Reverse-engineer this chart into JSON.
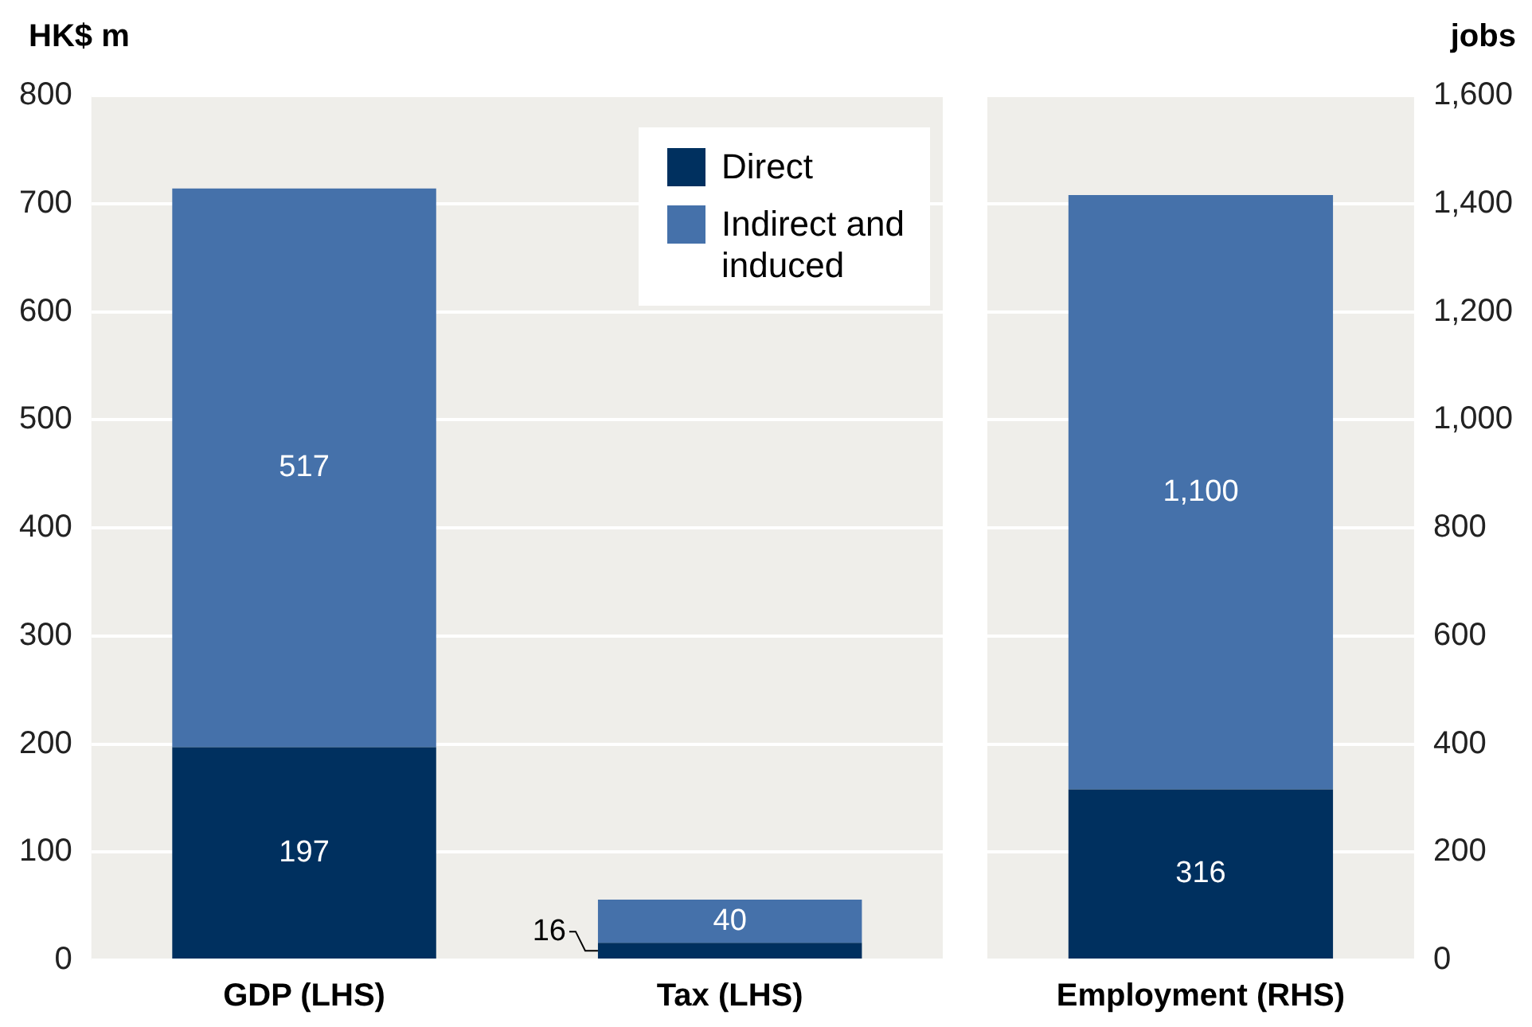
{
  "chart_data": [
    {
      "type": "bar",
      "ylabel": "HK$ m",
      "categories": [
        "GDP (LHS)",
        "Tax (LHS)"
      ],
      "stacked": true,
      "ylim": [
        0,
        800
      ],
      "yticks": [
        0,
        100,
        200,
        300,
        400,
        500,
        600,
        700,
        800
      ],
      "grid": "y",
      "legend": "top right",
      "series": [
        {
          "name": "Direct",
          "color": "#00305f",
          "values": [
            197,
            16
          ],
          "value_labels": [
            "197",
            "16"
          ]
        },
        {
          "name": "Indirect and induced",
          "color": "#4571aa",
          "values": [
            517,
            40
          ],
          "value_labels": [
            "517",
            "40"
          ]
        }
      ]
    },
    {
      "type": "bar",
      "y2label": "jobs",
      "categories": [
        "Employment (RHS)"
      ],
      "stacked": true,
      "y2lim": [
        0,
        1600
      ],
      "y2ticks": [
        0,
        {
          "value": 200,
          "label": "200"
        },
        {
          "value": 400,
          "label": "400"
        },
        {
          "value": 600,
          "label": "600"
        },
        {
          "value": 800,
          "label": "800"
        },
        {
          "value": 1000,
          "label": "1,000"
        },
        {
          "value": 1200,
          "label": "1,200"
        },
        {
          "value": 1400,
          "label": "1,400"
        },
        {
          "value": 1600,
          "label": "1,600"
        }
      ],
      "grid": "y",
      "legend": false,
      "series": [
        {
          "color": "#00305f",
          "values": [
            316
          ],
          "value_labels": [
            "316"
          ],
          "axis": "y2"
        },
        {
          "color": "#4571aa",
          "values": [
            1100
          ],
          "value_labels": [
            "1,100"
          ],
          "axis": "y2"
        }
      ]
    }
  ]
}
